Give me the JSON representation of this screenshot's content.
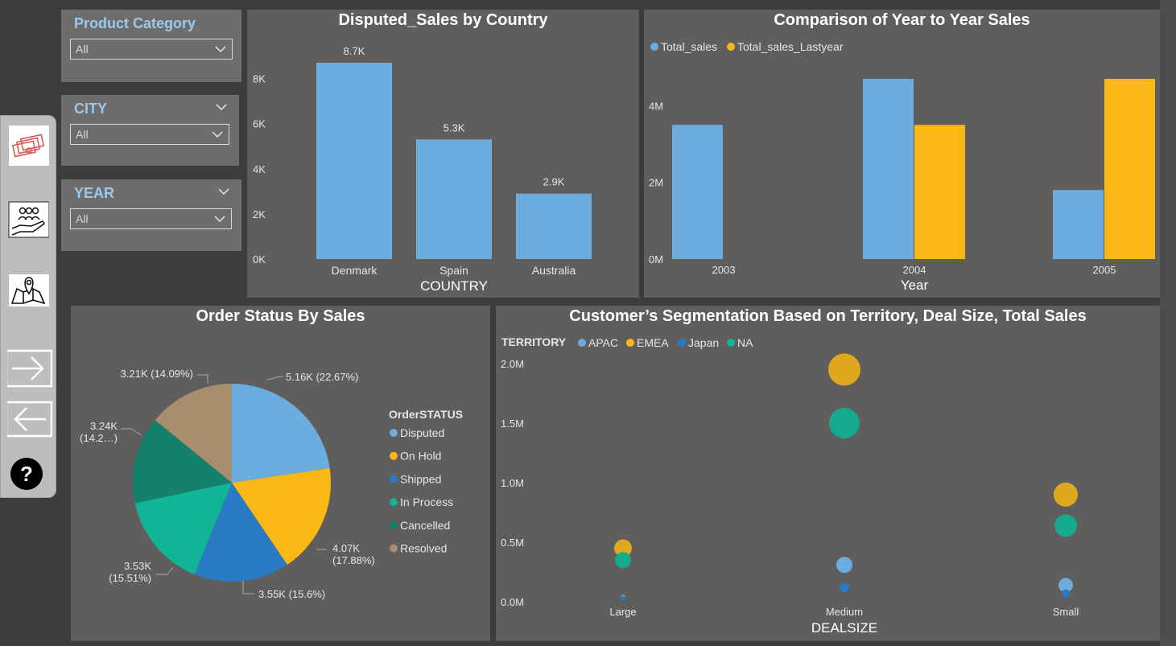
{
  "slicers": [
    {
      "title": "Product Category",
      "value": "All"
    },
    {
      "title": "CITY",
      "value": "All"
    },
    {
      "title": "YEAR",
      "value": "All"
    }
  ],
  "nav": {
    "icons": [
      "money-icon",
      "customers-icon",
      "map-icon",
      "next-arrow-icon",
      "back-arrow-icon",
      "help-icon"
    ],
    "help_label": "?"
  },
  "colors": {
    "blue": "#6caddf",
    "yellow": "#fbb714",
    "dark_blue": "#2a79c3",
    "teal": "#12b497",
    "dark_teal": "#14816d",
    "tan": "#a88e6f"
  },
  "disputed_chart": {
    "title": "Disputed_Sales by Country",
    "chart_data": {
      "type": "bar",
      "categories": [
        "Denmark",
        "Spain",
        "Australia"
      ],
      "values": [
        8700,
        5300,
        2900
      ],
      "data_labels": [
        "8.7K",
        "5.3K",
        "2.9K"
      ],
      "xlabel": "COUNTRY",
      "yticks": [
        "0K",
        "2K",
        "4K",
        "6K",
        "8K"
      ],
      "ylim": [
        0,
        8700
      ]
    }
  },
  "yoy_chart": {
    "title": "Comparison of Year to Year Sales",
    "legend": [
      "Total_sales",
      "Total_sales_Lastyear"
    ],
    "chart_data": {
      "type": "bar",
      "categories": [
        "2003",
        "2004",
        "2005"
      ],
      "series": [
        {
          "name": "Total_sales",
          "values": [
            3500000,
            4700000,
            1800000
          ]
        },
        {
          "name": "Total_sales_Lastyear",
          "values": [
            0,
            3500000,
            4700000
          ]
        }
      ],
      "xlabel": "Year",
      "yticks": [
        "0M",
        "2M",
        "4M"
      ],
      "ylim": [
        0,
        4700000
      ]
    }
  },
  "pie_chart": {
    "title": "Order Status By Sales",
    "legend_title": "OrderSTATUS",
    "chart_data": {
      "type": "pie",
      "slices": [
        {
          "name": "Disputed",
          "value": 5160,
          "label": "5.16K (22.67%)"
        },
        {
          "name": "On Hold",
          "value": 4070,
          "label": "4.07K (17.88%)"
        },
        {
          "name": "Shipped",
          "value": 3550,
          "label": "3.55K (15.6%)"
        },
        {
          "name": "In Process",
          "value": 3530,
          "label": "3.53K (15.51%)"
        },
        {
          "name": "Cancelled",
          "value": 3240,
          "label": "3.24K (14.2…)"
        },
        {
          "name": "Resolved",
          "value": 3210,
          "label": "3.21K (14.09%)"
        }
      ]
    }
  },
  "scatter_chart": {
    "title": "Customer’s Segmentation Based on Territory, Deal Size, Total Sales",
    "legend_title": "TERRITORY",
    "legend": [
      "APAC",
      "EMEA",
      "Japan",
      "NA"
    ],
    "chart_data": {
      "type": "scatter",
      "categories": [
        "Large",
        "Medium",
        "Small"
      ],
      "xlabel": "DEALSIZE",
      "yticks": [
        "0.0M",
        "0.5M",
        "1.0M",
        "1.5M",
        "2.0M"
      ],
      "ylim": [
        0,
        2000000
      ],
      "series": [
        {
          "name": "APAC",
          "values": [
            40000,
            310000,
            140000
          ]
        },
        {
          "name": "EMEA",
          "values": [
            450000,
            1950000,
            900000
          ]
        },
        {
          "name": "Japan",
          "values": [
            30000,
            120000,
            70000
          ]
        },
        {
          "name": "NA",
          "values": [
            350000,
            1500000,
            640000
          ]
        }
      ]
    }
  }
}
